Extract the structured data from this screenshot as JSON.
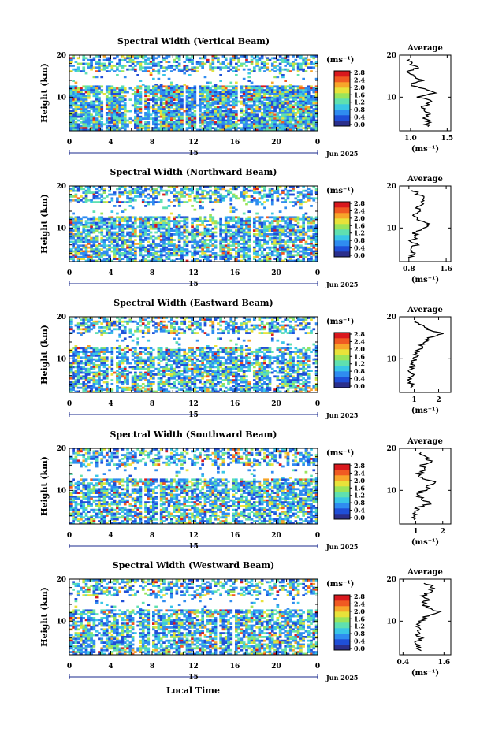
{
  "x_axis": {
    "label": "Local Time",
    "ticks": [
      "0",
      "4",
      "8",
      "12",
      "16",
      "20",
      "0"
    ],
    "date_label": "15",
    "month_label": "Jun 2025"
  },
  "colorbar": {
    "unit": "(ms⁻¹)",
    "ticks": [
      "2.8",
      "2.4",
      "2.0",
      "1.6",
      "1.2",
      "0.8",
      "0.4",
      "0.0"
    ],
    "colors": [
      "#2b2f8c",
      "#1f4fd8",
      "#2f8cf0",
      "#39c6e6",
      "#5fe0b0",
      "#9be45a",
      "#e8e23a",
      "#f7a52a",
      "#f05a22",
      "#d9181d"
    ]
  },
  "average_unit_label": "(ms⁻¹)",
  "chart_data": [
    {
      "type": "heatmap",
      "title": "Spectral Width (Vertical Beam)",
      "ylabel": "Height (km)",
      "xlabel": "",
      "xlim": [
        0,
        24
      ],
      "ylim": [
        2,
        20
      ],
      "yticks": [
        "20",
        "10"
      ],
      "profile": {
        "title": "Average",
        "xticks": [
          "1.0",
          "1.5"
        ],
        "xlim": [
          0.85,
          1.55
        ],
        "heights": [
          3,
          4,
          5,
          6,
          7,
          8,
          9,
          10,
          11,
          12,
          13,
          14,
          15,
          16,
          17,
          18,
          19
        ],
        "values": [
          1.2,
          1.25,
          1.2,
          1.25,
          1.15,
          1.2,
          1.3,
          1.1,
          1.35,
          1.2,
          1.0,
          1.15,
          1.05,
          0.95,
          1.1,
          1.0,
          0.95
        ]
      }
    },
    {
      "type": "heatmap",
      "title": "Spectral Width (Northward Beam)",
      "ylabel": "Height (km)",
      "xlabel": "",
      "xlim": [
        0,
        24
      ],
      "ylim": [
        2,
        20
      ],
      "yticks": [
        "20",
        "10"
      ],
      "profile": {
        "title": "Average",
        "xticks": [
          "0.8",
          "1.6"
        ],
        "xlim": [
          0.6,
          1.7
        ],
        "heights": [
          3,
          4,
          5,
          6,
          7,
          8,
          9,
          10,
          11,
          12,
          13,
          14,
          15,
          16,
          17,
          18,
          19
        ],
        "values": [
          0.85,
          0.9,
          0.8,
          0.95,
          0.85,
          1.0,
          0.9,
          1.1,
          1.2,
          1.0,
          0.9,
          1.05,
          0.95,
          1.1,
          1.15,
          1.0,
          0.9
        ]
      }
    },
    {
      "type": "heatmap",
      "title": "Spectral Width (Eastward Beam)",
      "ylabel": "Height (km)",
      "xlabel": "",
      "xlim": [
        0,
        24
      ],
      "ylim": [
        2,
        20
      ],
      "yticks": [
        "20",
        "10"
      ],
      "profile": {
        "title": "Average",
        "xticks": [
          "1",
          "2"
        ],
        "xlim": [
          0.4,
          2.5
        ],
        "heights": [
          3,
          4,
          5,
          6,
          7,
          8,
          9,
          10,
          11,
          12,
          13,
          14,
          15,
          16,
          17,
          18,
          19
        ],
        "values": [
          0.8,
          0.85,
          0.8,
          0.9,
          0.85,
          0.9,
          0.95,
          1.0,
          1.1,
          1.2,
          1.3,
          1.4,
          1.6,
          2.2,
          1.5,
          1.3,
          1.1
        ]
      }
    },
    {
      "type": "heatmap",
      "title": "Spectral Width (Southward Beam)",
      "ylabel": "Height (km)",
      "xlabel": "",
      "xlim": [
        0,
        24
      ],
      "ylim": [
        2,
        20
      ],
      "yticks": [
        "20",
        "10"
      ],
      "profile": {
        "title": "Average",
        "xticks": [
          "1",
          "2"
        ],
        "xlim": [
          0.4,
          2.3
        ],
        "heights": [
          3,
          4,
          5,
          6,
          7,
          8,
          9,
          10,
          11,
          12,
          13,
          14,
          15,
          16,
          17,
          18,
          19
        ],
        "values": [
          0.9,
          1.0,
          0.95,
          1.1,
          1.6,
          1.2,
          1.1,
          1.3,
          1.5,
          1.8,
          1.2,
          1.1,
          1.4,
          1.2,
          1.6,
          1.3,
          1.1
        ]
      }
    },
    {
      "type": "heatmap",
      "title": "Spectral Width (Westward Beam)",
      "ylabel": "Height (km)",
      "xlabel": "Local Time",
      "xlim": [
        0,
        24
      ],
      "ylim": [
        2,
        20
      ],
      "yticks": [
        "20",
        "10"
      ],
      "profile": {
        "title": "Average",
        "xticks": [
          "0.4",
          "1.6"
        ],
        "xlim": [
          0.3,
          1.8
        ],
        "heights": [
          3,
          4,
          5,
          6,
          7,
          8,
          9,
          10,
          11,
          12,
          13,
          14,
          15,
          16,
          17,
          18,
          19
        ],
        "values": [
          0.9,
          0.85,
          0.8,
          0.9,
          0.85,
          0.9,
          0.85,
          0.95,
          1.0,
          1.5,
          1.2,
          1.0,
          1.1,
          1.0,
          1.2,
          1.3,
          1.1
        ]
      }
    }
  ]
}
